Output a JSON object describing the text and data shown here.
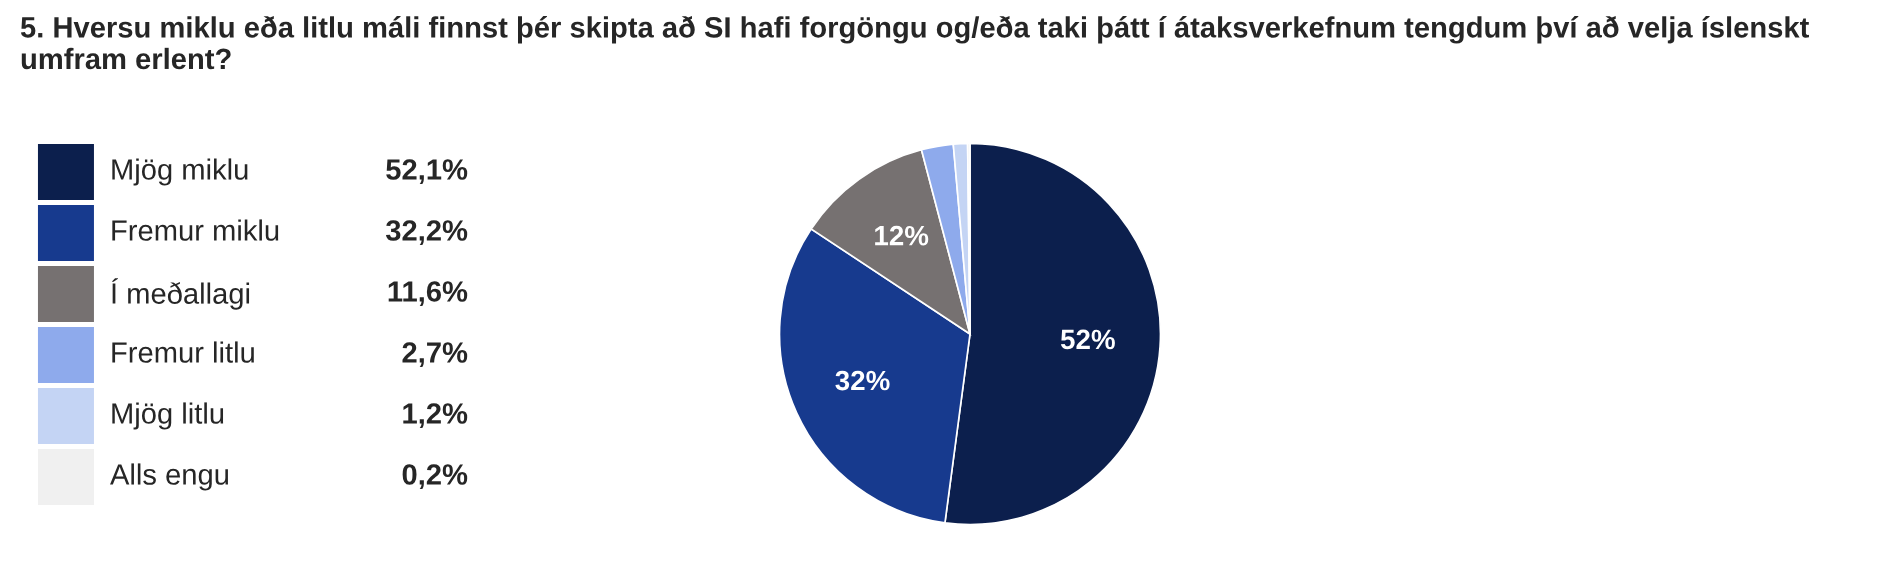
{
  "chart_data": {
    "type": "pie",
    "title": "5. Hversu miklu eða litlu máli finnst þér skipta að SI hafi forgöngu og/eða taki þátt í átaksverkefnum tengdum því að velja íslenskt umfram erlent?",
    "categories": [
      "Mjög miklu",
      "Fremur miklu",
      "Í meðallagi",
      "Fremur litlu",
      "Mjög litlu",
      "Alls engu"
    ],
    "values": [
      52.1,
      32.2,
      11.6,
      2.7,
      1.2,
      0.2
    ],
    "value_labels": [
      "52,1%",
      "32,2%",
      "11,6%",
      "2,7%",
      "1,2%",
      "0,2%"
    ],
    "colors": [
      "#0c1f4d",
      "#173a8e",
      "#767171",
      "#8eaaec",
      "#c4d4f4",
      "#f0f0f0"
    ],
    "annotations": [
      {
        "text": "52%",
        "x": "Mjög miklu"
      },
      {
        "text": "32%",
        "x": "Fremur miklu"
      },
      {
        "text": "12%",
        "x": "Í meðallagi"
      }
    ],
    "legend": "left"
  }
}
